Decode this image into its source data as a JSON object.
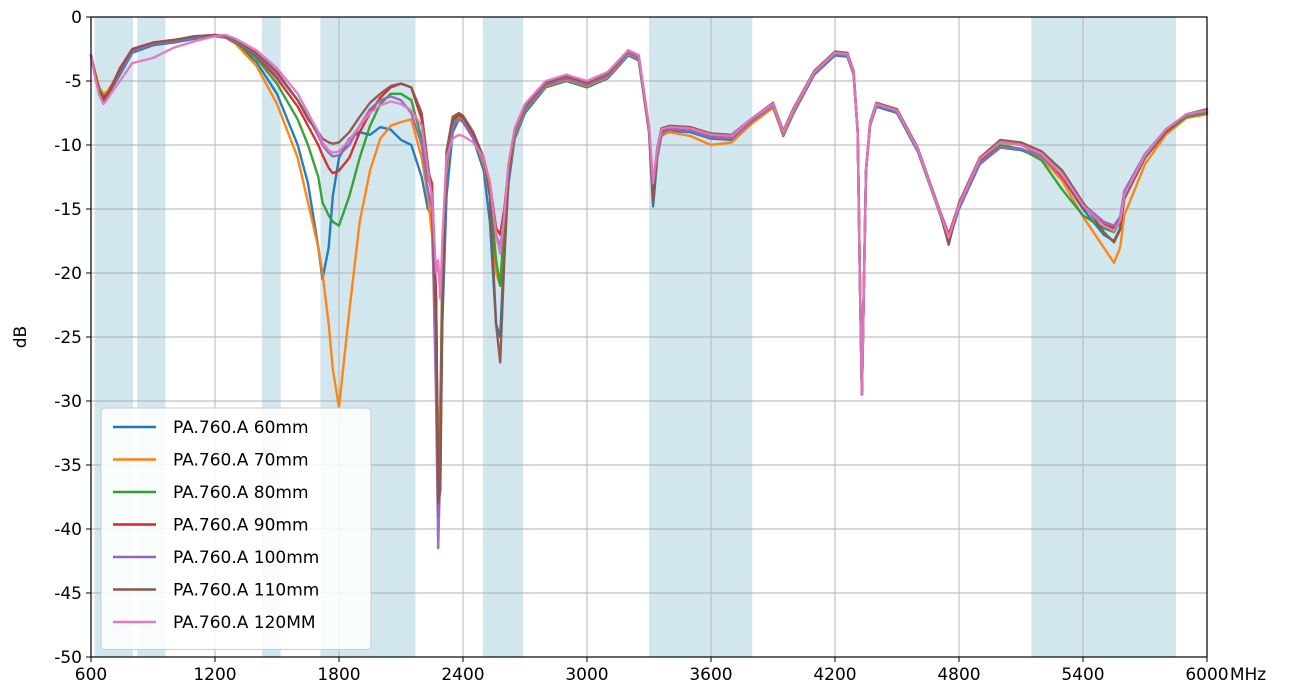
{
  "chart_data": {
    "type": "line",
    "title": "",
    "xlabel": "MHz",
    "ylabel": "dB",
    "xlim": [
      600,
      6000
    ],
    "ylim": [
      -50,
      0
    ],
    "x_ticks": [
      600,
      1200,
      1800,
      2400,
      3000,
      3600,
      4200,
      4800,
      5400,
      6000
    ],
    "x_tick_labels": [
      "600",
      "1200",
      "1800",
      "2400",
      "3000",
      "3600",
      "4200",
      "4800",
      "5400",
      "6000"
    ],
    "y_ticks": [
      0,
      -5,
      -10,
      -15,
      -20,
      -25,
      -30,
      -35,
      -40,
      -45,
      -50
    ],
    "y_tick_labels": [
      "0",
      "-5",
      "-10",
      "-15",
      "-20",
      "-25",
      "-30",
      "-35",
      "-40",
      "-45",
      "-50"
    ],
    "grid": true,
    "legend_position": "lower-left",
    "band_color": "#d2e6ee",
    "shaded_bands": [
      [
        617,
        803
      ],
      [
        824,
        960
      ],
      [
        1427,
        1518
      ],
      [
        1710,
        2170
      ],
      [
        2496,
        2690
      ],
      [
        3300,
        3800
      ],
      [
        5150,
        5850
      ]
    ],
    "x": [
      600,
      620,
      640,
      660,
      680,
      700,
      740,
      800,
      900,
      1000,
      1100,
      1200,
      1250,
      1300,
      1400,
      1500,
      1600,
      1650,
      1700,
      1720,
      1750,
      1770,
      1800,
      1850,
      1900,
      1950,
      2000,
      2050,
      2100,
      2150,
      2200,
      2230,
      2250,
      2270,
      2280,
      2290,
      2300,
      2320,
      2350,
      2380,
      2400,
      2450,
      2500,
      2530,
      2560,
      2580,
      2600,
      2620,
      2650,
      2700,
      2800,
      2900,
      3000,
      3100,
      3200,
      3250,
      3300,
      3320,
      3340,
      3360,
      3400,
      3500,
      3600,
      3700,
      3800,
      3900,
      3950,
      4000,
      4100,
      4200,
      4260,
      4290,
      4310,
      4320,
      4330,
      4340,
      4350,
      4370,
      4400,
      4500,
      4600,
      4700,
      4750,
      4800,
      4900,
      5000,
      5100,
      5200,
      5300,
      5400,
      5500,
      5550,
      5580,
      5600,
      5700,
      5800,
      5900,
      6000
    ],
    "series": [
      {
        "name": "PA.760.A 60mm",
        "color": "#1f77b4",
        "values": [
          -3.0,
          -4.5,
          -5.8,
          -6.3,
          -6.0,
          -5.6,
          -4.5,
          -2.8,
          -2.2,
          -2.0,
          -1.7,
          -1.5,
          -1.6,
          -2.0,
          -3.5,
          -6.0,
          -10.0,
          -13.0,
          -18.0,
          -20.5,
          -18.0,
          -14.0,
          -11.0,
          -9.5,
          -9.0,
          -9.2,
          -8.6,
          -8.8,
          -9.6,
          -10.0,
          -12.5,
          -15.0,
          -15.5,
          -22.0,
          -38.0,
          -34.0,
          -24.0,
          -14.0,
          -9.0,
          -8.0,
          -8.2,
          -9.5,
          -12.0,
          -16.0,
          -24.0,
          -25.0,
          -18.0,
          -13.0,
          -9.5,
          -7.5,
          -5.5,
          -5.0,
          -5.5,
          -4.8,
          -3.0,
          -3.4,
          -9.0,
          -14.8,
          -11.0,
          -9.3,
          -8.9,
          -9.0,
          -9.5,
          -9.6,
          -8.2,
          -7.0,
          -9.3,
          -7.5,
          -4.5,
          -3.0,
          -3.1,
          -4.5,
          -9.0,
          -20.0,
          -29.5,
          -21.0,
          -12.0,
          -8.5,
          -7.0,
          -7.5,
          -10.5,
          -15.0,
          -17.5,
          -15.0,
          -11.5,
          -10.2,
          -10.4,
          -11.0,
          -12.5,
          -15.0,
          -17.0,
          -17.5,
          -16.5,
          -14.0,
          -11.0,
          -9.0,
          -7.8,
          -7.5
        ]
      },
      {
        "name": "PA.760.A 70mm",
        "color": "#ff7f0e",
        "values": [
          -3.0,
          -4.3,
          -5.5,
          -6.0,
          -5.8,
          -5.3,
          -4.2,
          -2.6,
          -2.1,
          -1.9,
          -1.6,
          -1.5,
          -1.6,
          -2.1,
          -3.8,
          -6.8,
          -11.0,
          -14.5,
          -18.0,
          -20.0,
          -24.0,
          -27.5,
          -30.5,
          -23.0,
          -16.0,
          -12.0,
          -9.5,
          -8.5,
          -8.2,
          -8.0,
          -11.0,
          -14.0,
          -17.0,
          -25.0,
          -34.0,
          -30.0,
          -20.0,
          -12.0,
          -8.5,
          -7.8,
          -8.0,
          -9.3,
          -11.5,
          -14.0,
          -20.0,
          -21.0,
          -17.0,
          -12.5,
          -9.2,
          -7.3,
          -5.4,
          -4.9,
          -5.4,
          -4.7,
          -2.9,
          -3.3,
          -9.0,
          -13.5,
          -10.8,
          -9.2,
          -9.0,
          -9.3,
          -10.0,
          -9.8,
          -8.3,
          -7.1,
          -9.2,
          -7.4,
          -4.4,
          -2.9,
          -3.0,
          -4.4,
          -9.0,
          -20.0,
          -29.5,
          -21.0,
          -12.0,
          -8.4,
          -6.9,
          -7.4,
          -10.4,
          -15.0,
          -17.0,
          -14.8,
          -11.4,
          -10.1,
          -10.3,
          -11.0,
          -12.8,
          -15.6,
          -18.0,
          -19.2,
          -18.0,
          -15.5,
          -11.5,
          -9.2,
          -7.9,
          -7.6
        ]
      },
      {
        "name": "PA.760.A 80mm",
        "color": "#2ca02c",
        "values": [
          -3.0,
          -4.4,
          -5.7,
          -6.2,
          -6.0,
          -5.5,
          -4.3,
          -2.6,
          -2.1,
          -1.9,
          -1.6,
          -1.5,
          -1.6,
          -2.0,
          -3.2,
          -5.2,
          -8.0,
          -10.0,
          -12.5,
          -14.5,
          -15.5,
          -16.0,
          -16.3,
          -14.0,
          -11.0,
          -8.5,
          -6.8,
          -6.0,
          -6.0,
          -6.5,
          -9.5,
          -12.5,
          -13.5,
          -22.0,
          -37.0,
          -32.0,
          -20.0,
          -11.5,
          -8.2,
          -7.7,
          -7.9,
          -9.3,
          -11.0,
          -13.5,
          -19.0,
          -21.0,
          -16.0,
          -12.0,
          -9.0,
          -7.2,
          -5.3,
          -4.8,
          -5.3,
          -4.6,
          -2.8,
          -3.2,
          -8.8,
          -13.8,
          -10.5,
          -9.0,
          -8.7,
          -8.9,
          -9.4,
          -9.5,
          -8.1,
          -6.9,
          -9.1,
          -7.3,
          -4.4,
          -2.9,
          -3.0,
          -4.4,
          -9.0,
          -20.0,
          -29.5,
          -21.0,
          -12.0,
          -8.4,
          -6.9,
          -7.4,
          -10.4,
          -15.0,
          -17.2,
          -14.8,
          -11.3,
          -10.0,
          -10.3,
          -11.2,
          -13.5,
          -15.5,
          -16.5,
          -16.8,
          -16.0,
          -14.0,
          -11.0,
          -9.0,
          -7.8,
          -7.5
        ]
      },
      {
        "name": "PA.760.A 90mm",
        "color": "#d62728",
        "values": [
          -3.0,
          -4.5,
          -5.8,
          -6.4,
          -6.0,
          -5.4,
          -4.0,
          -2.5,
          -2.0,
          -1.8,
          -1.6,
          -1.4,
          -1.5,
          -1.9,
          -3.0,
          -4.8,
          -7.0,
          -8.5,
          -10.0,
          -10.8,
          -11.8,
          -12.2,
          -12.0,
          -11.0,
          -9.0,
          -7.5,
          -6.3,
          -5.5,
          -5.2,
          -5.5,
          -8.0,
          -12.0,
          -13.0,
          -22.0,
          -39.0,
          -36.0,
          -22.0,
          -11.0,
          -8.0,
          -7.6,
          -7.8,
          -9.2,
          -11.0,
          -13.0,
          -16.5,
          -17.0,
          -15.0,
          -11.8,
          -8.9,
          -7.0,
          -5.2,
          -4.7,
          -5.2,
          -4.5,
          -2.7,
          -3.1,
          -8.7,
          -13.5,
          -10.3,
          -8.9,
          -8.7,
          -8.8,
          -9.3,
          -9.4,
          -8.0,
          -6.8,
          -9.0,
          -7.2,
          -4.3,
          -2.8,
          -2.9,
          -4.3,
          -9.0,
          -20.0,
          -29.5,
          -21.0,
          -12.0,
          -8.3,
          -6.8,
          -7.3,
          -10.3,
          -14.8,
          -17.0,
          -14.6,
          -11.2,
          -9.8,
          -10.0,
          -10.8,
          -12.5,
          -14.8,
          -16.2,
          -16.5,
          -15.8,
          -13.8,
          -10.8,
          -8.8,
          -7.6,
          -7.3
        ]
      },
      {
        "name": "PA.760.A 100mm",
        "color": "#9467bd",
        "values": [
          -3.0,
          -4.6,
          -6.0,
          -6.6,
          -6.2,
          -5.6,
          -4.3,
          -2.7,
          -2.1,
          -1.9,
          -1.6,
          -1.5,
          -1.6,
          -1.9,
          -2.9,
          -4.5,
          -6.5,
          -7.8,
          -9.3,
          -10.0,
          -10.6,
          -10.9,
          -10.8,
          -10.0,
          -8.5,
          -7.2,
          -6.5,
          -6.2,
          -6.5,
          -7.5,
          -10.0,
          -13.5,
          -15.0,
          -30.0,
          -41.5,
          -35.0,
          -22.0,
          -11.5,
          -8.5,
          -8.0,
          -8.1,
          -9.5,
          -11.2,
          -13.0,
          -17.0,
          -18.0,
          -15.5,
          -12.0,
          -9.0,
          -7.1,
          -5.3,
          -4.8,
          -5.3,
          -4.6,
          -2.8,
          -3.2,
          -8.8,
          -14.0,
          -10.6,
          -9.1,
          -8.8,
          -8.9,
          -9.4,
          -9.5,
          -8.1,
          -6.9,
          -9.1,
          -7.3,
          -4.4,
          -2.9,
          -3.0,
          -4.4,
          -9.0,
          -20.0,
          -29.5,
          -21.0,
          -12.0,
          -8.4,
          -6.9,
          -7.4,
          -10.4,
          -15.0,
          -17.4,
          -14.9,
          -11.4,
          -10.2,
          -10.3,
          -10.9,
          -12.4,
          -14.6,
          -16.0,
          -16.3,
          -15.6,
          -13.6,
          -10.7,
          -8.8,
          -7.7,
          -7.4
        ]
      },
      {
        "name": "PA.760.A 110mm",
        "color": "#8c564b",
        "values": [
          -3.0,
          -4.5,
          -5.9,
          -6.5,
          -6.1,
          -5.5,
          -4.1,
          -2.5,
          -2.0,
          -1.8,
          -1.5,
          -1.4,
          -1.5,
          -1.8,
          -2.8,
          -4.3,
          -6.5,
          -8.0,
          -9.0,
          -9.5,
          -9.8,
          -9.9,
          -9.8,
          -9.0,
          -7.8,
          -6.7,
          -6.0,
          -5.4,
          -5.2,
          -5.5,
          -7.5,
          -11.5,
          -14.0,
          -24.0,
          -38.0,
          -37.0,
          -23.0,
          -10.5,
          -7.8,
          -7.5,
          -7.7,
          -9.0,
          -11.0,
          -14.0,
          -24.0,
          -27.0,
          -19.0,
          -12.5,
          -8.8,
          -6.9,
          -5.1,
          -4.6,
          -5.1,
          -4.4,
          -2.6,
          -3.0,
          -8.6,
          -14.5,
          -10.2,
          -8.7,
          -8.5,
          -8.6,
          -9.1,
          -9.2,
          -7.9,
          -6.7,
          -8.9,
          -7.1,
          -4.2,
          -2.7,
          -2.8,
          -4.2,
          -9.0,
          -20.0,
          -29.5,
          -21.0,
          -12.0,
          -8.2,
          -6.7,
          -7.2,
          -10.2,
          -14.8,
          -17.8,
          -14.5,
          -11.0,
          -9.6,
          -9.8,
          -10.5,
          -12.0,
          -14.5,
          -16.8,
          -17.6,
          -16.6,
          -14.2,
          -11.0,
          -9.0,
          -7.6,
          -7.2
        ]
      },
      {
        "name": "PA.760.A 120MM",
        "color": "#e377c2",
        "values": [
          -3.0,
          -4.7,
          -6.1,
          -6.8,
          -6.4,
          -5.9,
          -5.0,
          -3.6,
          -3.2,
          -2.4,
          -1.9,
          -1.5,
          -1.4,
          -1.7,
          -2.6,
          -4.0,
          -6.0,
          -7.5,
          -9.0,
          -9.8,
          -10.4,
          -10.6,
          -10.5,
          -9.6,
          -8.5,
          -7.5,
          -6.9,
          -6.6,
          -6.8,
          -7.3,
          -8.5,
          -12.0,
          -14.0,
          -20.0,
          -19.0,
          -22.0,
          -17.5,
          -11.0,
          -9.5,
          -9.2,
          -9.3,
          -9.8,
          -11.0,
          -13.0,
          -17.0,
          -18.5,
          -15.5,
          -11.5,
          -8.7,
          -6.8,
          -5.0,
          -4.5,
          -5.0,
          -4.3,
          -2.6,
          -3.0,
          -8.5,
          -13.0,
          -10.2,
          -8.8,
          -8.6,
          -8.7,
          -9.2,
          -9.3,
          -7.9,
          -6.8,
          -9.0,
          -7.2,
          -4.3,
          -2.8,
          -2.9,
          -4.3,
          -9.0,
          -20.0,
          -29.5,
          -21.0,
          -12.0,
          -8.3,
          -6.8,
          -7.3,
          -10.3,
          -14.9,
          -17.2,
          -14.7,
          -11.1,
          -9.8,
          -10.0,
          -10.7,
          -12.3,
          -14.7,
          -16.3,
          -16.7,
          -15.9,
          -13.9,
          -10.8,
          -8.8,
          -7.6,
          -7.3
        ]
      }
    ]
  }
}
